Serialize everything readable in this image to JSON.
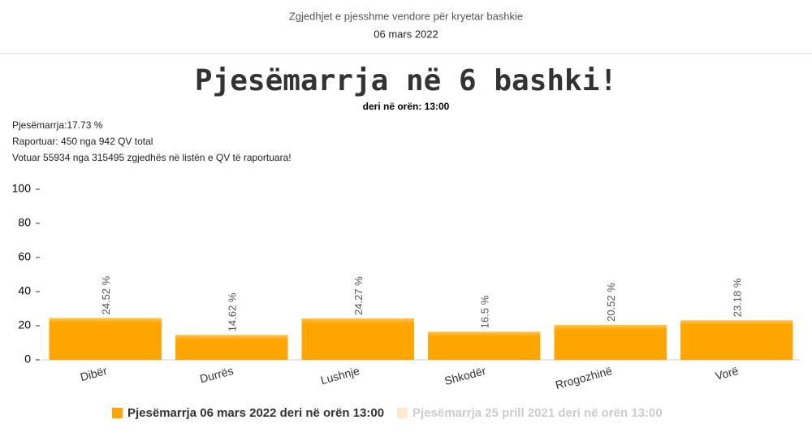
{
  "header": {
    "title": "Zgjedhjet e pjesshme vendore për kryetar bashkie",
    "date": "06 mars 2022"
  },
  "info": [
    "Pjesëmarrja:17.73 %",
    "Raportuar: 450 nga 942 QV total",
    "Votuar 55934 nga 315495 zgjedhës në listën e QV të raportuara!"
  ],
  "chart_data": {
    "type": "bar",
    "title": "Pjesëmarrja në 6 bashki!",
    "subtitle": "deri në orën: 13:00",
    "categories": [
      "Dibër",
      "Durrës",
      "Lushnje",
      "Shkodër",
      "Rrogozhinë",
      "Vorë"
    ],
    "series": [
      {
        "name": "Pjesëmarrja 06 mars 2022 deri në orën 13:00",
        "color": "#ffa500",
        "values": [
          24.52,
          14.62,
          24.27,
          16.5,
          20.52,
          23.18
        ],
        "value_labels": [
          "24.52 %",
          "14.62 %",
          "24.27 %",
          "16.5 %",
          "20.52 %",
          "23.18 %"
        ]
      },
      {
        "name": "Pjesëmarrja 25 prill 2021 deri në orën 13:00",
        "color": "#fdebd0"
      }
    ],
    "ylim": [
      0,
      100
    ],
    "yticks": [
      0,
      20,
      40,
      60,
      80,
      100
    ]
  }
}
